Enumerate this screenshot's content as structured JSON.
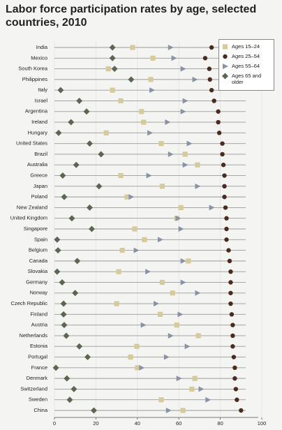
{
  "chart_data": {
    "type": "dot",
    "title": "Labor force participation rates by age, selected countries, 2010",
    "categories": [
      "India",
      "Mexico",
      "South Korea",
      "Philippines",
      "Italy",
      "Israel",
      "Argentina",
      "Ireland",
      "Hungary",
      "United States",
      "Brazil",
      "Australia",
      "Greece",
      "Japan",
      "Poland",
      "New Zealand",
      "United Kingdom",
      "Singapore",
      "Spain",
      "Belgium",
      "Canada",
      "Slovakia",
      "Germany",
      "Norway",
      "Czech Republic",
      "Finland",
      "Austria",
      "Netherlands",
      "Estonia",
      "Portugal",
      "France",
      "Denmark",
      "Switzerland",
      "Sweden",
      "China"
    ],
    "series": [
      {
        "name": "Ages 15–24",
        "color": "#d6c99a",
        "marker": "square",
        "values": [
          37.7,
          47.5,
          26,
          46.5,
          28,
          32,
          42,
          43,
          25,
          51.5,
          63,
          69,
          32,
          52,
          35,
          61,
          59,
          38.7,
          43.4,
          32.7,
          64.6,
          31,
          52,
          57,
          30,
          51,
          59,
          69.4,
          39.7,
          36.7,
          40,
          67.7,
          66.3,
          51.5,
          62
        ]
      },
      {
        "name": "Ages 25–54",
        "color": "#4a2b1e",
        "marker": "circle",
        "values": [
          75.8,
          72.7,
          74.7,
          75,
          75.8,
          77,
          79,
          79,
          79.5,
          81,
          81,
          81.5,
          82,
          82,
          82,
          82.5,
          83,
          83,
          83,
          84,
          84.5,
          85,
          85,
          85,
          85,
          85.5,
          86,
          86,
          86,
          86.5,
          87,
          87,
          87.5,
          88,
          90
        ]
      },
      {
        "name": "Ages 55–64",
        "color": "#8a93a6",
        "marker": "triangle",
        "values": [
          56,
          57.6,
          62,
          67.7,
          47,
          63,
          62,
          54.5,
          46,
          65,
          56,
          63,
          45.5,
          69,
          37,
          75.8,
          59.6,
          61,
          51,
          39.4,
          62,
          45,
          62,
          69,
          49,
          60.6,
          42.8,
          56,
          64,
          54,
          42,
          60,
          70.7,
          74,
          55
        ]
      },
      {
        "name": "Ages 65 and older",
        "color": "#5c6650",
        "marker": "diamond",
        "values": [
          28,
          28,
          29,
          37,
          3,
          12,
          15.5,
          8,
          2,
          17,
          22.5,
          10.5,
          4,
          21.5,
          4.7,
          17,
          8.4,
          18,
          1.3,
          1.7,
          11,
          1.3,
          3.7,
          10,
          4.4,
          4.4,
          4.7,
          5.7,
          12,
          16,
          0.7,
          6,
          9.4,
          7.4,
          19
        ]
      }
    ],
    "xlim": [
      0,
      100
    ],
    "xticks": [
      0,
      20,
      40,
      60,
      80,
      100
    ]
  }
}
